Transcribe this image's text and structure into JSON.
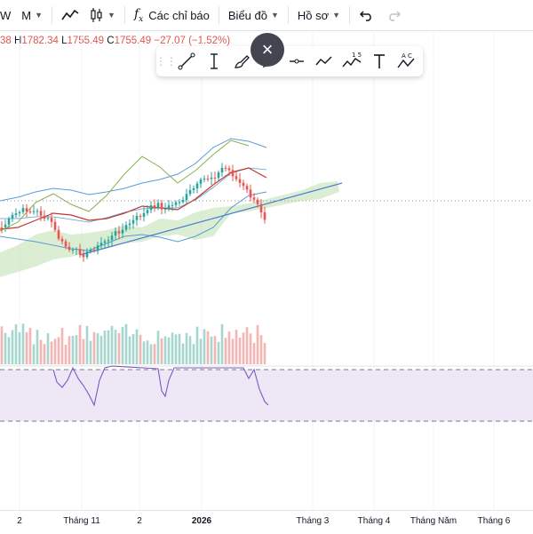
{
  "toolbar": {
    "interval_partial": "W",
    "interval_month": "M",
    "indicators_label": "Các chỉ báo",
    "charts_label": "Biểu đồ",
    "profile_label": "Hồ sơ"
  },
  "legend": {
    "open_partial": "38",
    "h_label": "H",
    "h_value": "1782.34",
    "l_label": "L",
    "l_value": "1755.49",
    "c_label": "C",
    "c_value": "1755.49",
    "change": "−27.07 (−1.52%)",
    "color_down": "#e0574f"
  },
  "drawing_tools": [
    "drag-handle-icon",
    "trend-line-icon",
    "text-cursor-icon",
    "brush-icon",
    "pencil-icon",
    "horizontal-line-icon",
    "polyline-icon",
    "elliott-wave-icon",
    "text-icon",
    "abcd-pattern-icon"
  ],
  "drawing_tool_labels": {
    "elliott": "1 5",
    "abcd": "A C"
  },
  "close_button": "×",
  "x_axis": {
    "labels": [
      "2",
      "Tháng 11",
      "2",
      "2026",
      "Tháng 3",
      "Tháng 4",
      "Tháng Năm",
      "Tháng 6"
    ],
    "bold_label": "2026"
  },
  "colors": {
    "up": "#26a69a",
    "down": "#ef5350",
    "bollinger": "#5b9bd5",
    "ma": "#c0392b",
    "cloud": "#cfe8c4",
    "lagging": "#88b04b",
    "trendline": "#4a7bd0",
    "rsi": "#7e57c2",
    "rsi_band": "#ede7f6"
  }
}
